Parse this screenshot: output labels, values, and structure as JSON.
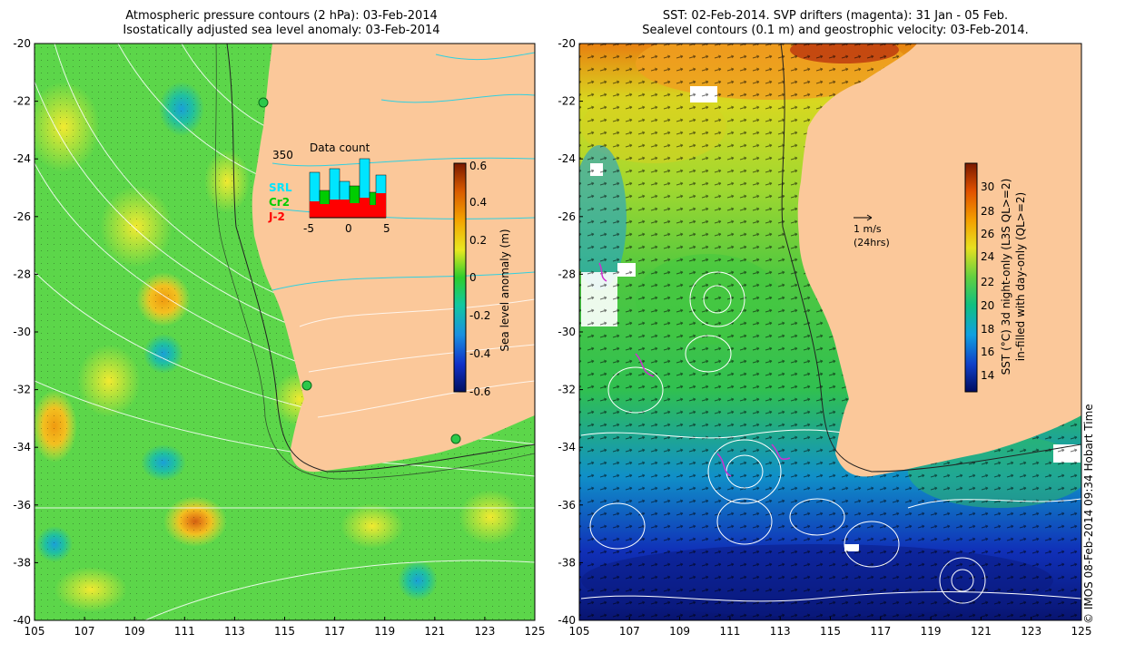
{
  "left_panel": {
    "title_line1": "Atmospheric pressure contours (2 hPa): 03-Feb-2014",
    "title_line2": "Isostatically adjusted sea level anomaly: 03-Feb-2014",
    "colorbar_label": "Sea level anomaly (m)",
    "colorbar_ticks": [
      "0.6",
      "0.4",
      "0.2",
      "0",
      "-0.2",
      "-0.4",
      "-0.6"
    ],
    "inset": {
      "title": "Data count",
      "max_label": "350",
      "x_ticks": [
        "-5",
        "0",
        "5"
      ],
      "legend": [
        "SRL",
        "Cr2",
        "J-2"
      ],
      "colors": {
        "SRL": "#00e5ff",
        "Cr2": "#00cc00",
        "J-2": "#ff0000"
      }
    }
  },
  "right_panel": {
    "title_line1": "SST: 02-Feb-2014. SVP drifters (magenta): 31 Jan - 05 Feb.",
    "title_line2": "Sealevel contours (0.1 m) and geostrophic velocity: 03-Feb-2014.",
    "velocity_scale_line1": "1 m/s",
    "velocity_scale_line2": "(24hrs)",
    "colorbar_label_line1": "SST (°C) 3d night-only (L3S QL>=2)",
    "colorbar_label_line2": "in-filled with day-only (QL>=2)",
    "colorbar_ticks": [
      "30",
      "28",
      "26",
      "24",
      "22",
      "20",
      "18",
      "16",
      "14"
    ]
  },
  "axes": {
    "lat_ticks": [
      "-20",
      "-22",
      "-24",
      "-26",
      "-28",
      "-30",
      "-32",
      "-34",
      "-36",
      "-38",
      "-40"
    ],
    "lon_ticks": [
      "105",
      "107",
      "109",
      "111",
      "113",
      "115",
      "117",
      "119",
      "121",
      "123",
      "125"
    ]
  },
  "credit": "© IMOS 08-Feb-2014 09:34 Hobart Time",
  "colors": {
    "land": "#fbc89a",
    "ocean_green": "#5cd64a"
  }
}
